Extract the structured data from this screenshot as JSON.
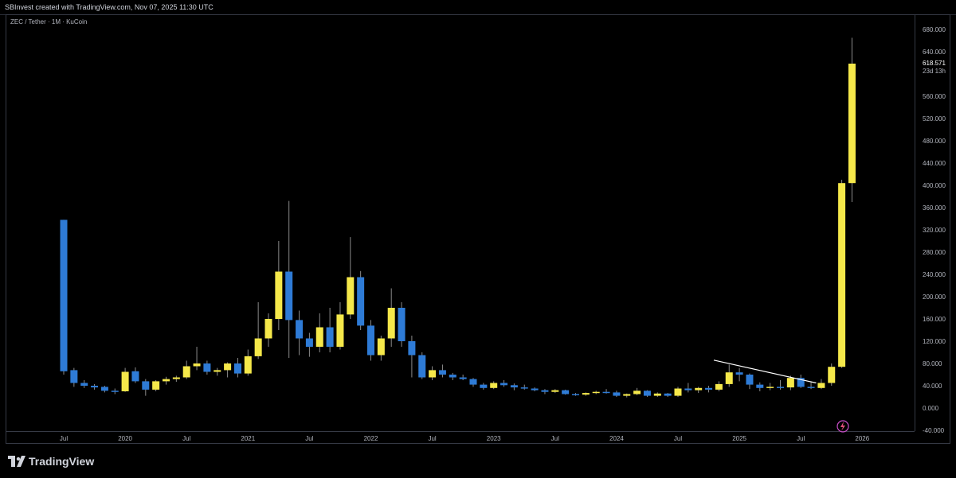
{
  "header": {
    "text": "SBInvest created with TradingView.com, Nov 07, 2025 11:30 UTC"
  },
  "chart": {
    "symbol_label": "ZEC / Tether · 1M · KuCoin"
  },
  "footer": {
    "logo_text": "TradingView"
  },
  "colors": {
    "up": "#f5e84a",
    "down": "#2e7bd6",
    "wick": "#8a8a8a",
    "trendline": "#ffffff"
  },
  "chart_data": {
    "type": "candlestick",
    "title": "ZEC / Tether · 1M · KuCoin",
    "timeframe": "1M",
    "ylim": [
      -40,
      700
    ],
    "y_ticks": [
      -40,
      0,
      40,
      80,
      120,
      160,
      200,
      240,
      280,
      320,
      360,
      400,
      440,
      480,
      520,
      560,
      600,
      640,
      680
    ],
    "y_tick_labels": [
      "-40.000",
      "0.000",
      "40.000",
      "80.000",
      "120.000",
      "160.000",
      "200.000",
      "240.000",
      "280.000",
      "320.000",
      "360.000",
      "400.000",
      "440.000",
      "480.000",
      "520.000",
      "560.000",
      "600.000",
      "640.000",
      "680.000"
    ],
    "x_ticks": [
      {
        "label": "Jul",
        "index": 0
      },
      {
        "label": "2020",
        "index": 6
      },
      {
        "label": "Jul",
        "index": 12
      },
      {
        "label": "2021",
        "index": 18
      },
      {
        "label": "Jul",
        "index": 24
      },
      {
        "label": "2022",
        "index": 30
      },
      {
        "label": "Jul",
        "index": 36
      },
      {
        "label": "2023",
        "index": 42
      },
      {
        "label": "Jul",
        "index": 48
      },
      {
        "label": "2024",
        "index": 54
      },
      {
        "label": "Jul",
        "index": 60
      },
      {
        "label": "2025",
        "index": 66
      },
      {
        "label": "Jul",
        "index": 72
      },
      {
        "label": "2026",
        "index": 78
      }
    ],
    "last_price_label": "618.571",
    "countdown_label": "23d 13h",
    "candles": [
      {
        "date": "2019-07",
        "o": 338,
        "h": 338,
        "l": 60,
        "c": 66
      },
      {
        "date": "2019-08",
        "o": 68,
        "h": 72,
        "l": 38,
        "c": 45
      },
      {
        "date": "2019-09",
        "o": 45,
        "h": 50,
        "l": 36,
        "c": 40
      },
      {
        "date": "2019-10",
        "o": 40,
        "h": 43,
        "l": 33,
        "c": 37
      },
      {
        "date": "2019-11",
        "o": 38,
        "h": 40,
        "l": 28,
        "c": 31
      },
      {
        "date": "2019-12",
        "o": 31,
        "h": 35,
        "l": 25,
        "c": 30
      },
      {
        "date": "2020-01",
        "o": 30,
        "h": 72,
        "l": 29,
        "c": 65
      },
      {
        "date": "2020-02",
        "o": 66,
        "h": 73,
        "l": 45,
        "c": 48
      },
      {
        "date": "2020-03",
        "o": 48,
        "h": 52,
        "l": 22,
        "c": 33
      },
      {
        "date": "2020-04",
        "o": 33,
        "h": 50,
        "l": 30,
        "c": 48
      },
      {
        "date": "2020-05",
        "o": 48,
        "h": 56,
        "l": 42,
        "c": 52
      },
      {
        "date": "2020-06",
        "o": 52,
        "h": 58,
        "l": 47,
        "c": 55
      },
      {
        "date": "2020-07",
        "o": 55,
        "h": 85,
        "l": 52,
        "c": 75
      },
      {
        "date": "2020-08",
        "o": 75,
        "h": 110,
        "l": 68,
        "c": 80
      },
      {
        "date": "2020-09",
        "o": 80,
        "h": 85,
        "l": 60,
        "c": 65
      },
      {
        "date": "2020-10",
        "o": 65,
        "h": 72,
        "l": 58,
        "c": 68
      },
      {
        "date": "2020-11",
        "o": 68,
        "h": 82,
        "l": 55,
        "c": 80
      },
      {
        "date": "2020-12",
        "o": 80,
        "h": 90,
        "l": 55,
        "c": 62
      },
      {
        "date": "2021-01",
        "o": 62,
        "h": 105,
        "l": 58,
        "c": 93
      },
      {
        "date": "2021-02",
        "o": 93,
        "h": 190,
        "l": 88,
        "c": 125
      },
      {
        "date": "2021-03",
        "o": 125,
        "h": 170,
        "l": 110,
        "c": 160
      },
      {
        "date": "2021-04",
        "o": 160,
        "h": 300,
        "l": 140,
        "c": 245
      },
      {
        "date": "2021-05",
        "o": 245,
        "h": 372,
        "l": 90,
        "c": 158
      },
      {
        "date": "2021-06",
        "o": 158,
        "h": 175,
        "l": 95,
        "c": 125
      },
      {
        "date": "2021-07",
        "o": 125,
        "h": 135,
        "l": 92,
        "c": 110
      },
      {
        "date": "2021-08",
        "o": 110,
        "h": 170,
        "l": 100,
        "c": 145
      },
      {
        "date": "2021-09",
        "o": 145,
        "h": 180,
        "l": 100,
        "c": 110
      },
      {
        "date": "2021-10",
        "o": 110,
        "h": 190,
        "l": 105,
        "c": 168
      },
      {
        "date": "2021-11",
        "o": 168,
        "h": 307,
        "l": 160,
        "c": 235
      },
      {
        "date": "2021-12",
        "o": 235,
        "h": 246,
        "l": 140,
        "c": 148
      },
      {
        "date": "2022-01",
        "o": 148,
        "h": 158,
        "l": 85,
        "c": 95
      },
      {
        "date": "2022-02",
        "o": 95,
        "h": 130,
        "l": 85,
        "c": 125
      },
      {
        "date": "2022-03",
        "o": 125,
        "h": 215,
        "l": 110,
        "c": 180
      },
      {
        "date": "2022-04",
        "o": 180,
        "h": 190,
        "l": 110,
        "c": 120
      },
      {
        "date": "2022-05",
        "o": 120,
        "h": 130,
        "l": 55,
        "c": 95
      },
      {
        "date": "2022-06",
        "o": 95,
        "h": 100,
        "l": 52,
        "c": 55
      },
      {
        "date": "2022-07",
        "o": 55,
        "h": 75,
        "l": 50,
        "c": 68
      },
      {
        "date": "2022-08",
        "o": 68,
        "h": 78,
        "l": 55,
        "c": 60
      },
      {
        "date": "2022-09",
        "o": 60,
        "h": 63,
        "l": 50,
        "c": 55
      },
      {
        "date": "2022-10",
        "o": 55,
        "h": 60,
        "l": 50,
        "c": 52
      },
      {
        "date": "2022-11",
        "o": 52,
        "h": 54,
        "l": 38,
        "c": 42
      },
      {
        "date": "2022-12",
        "o": 42,
        "h": 45,
        "l": 33,
        "c": 36
      },
      {
        "date": "2023-01",
        "o": 36,
        "h": 48,
        "l": 34,
        "c": 45
      },
      {
        "date": "2023-02",
        "o": 45,
        "h": 50,
        "l": 38,
        "c": 41
      },
      {
        "date": "2023-03",
        "o": 41,
        "h": 44,
        "l": 32,
        "c": 37
      },
      {
        "date": "2023-04",
        "o": 37,
        "h": 42,
        "l": 33,
        "c": 35
      },
      {
        "date": "2023-05",
        "o": 35,
        "h": 37,
        "l": 30,
        "c": 32
      },
      {
        "date": "2023-06",
        "o": 32,
        "h": 34,
        "l": 25,
        "c": 29
      },
      {
        "date": "2023-07",
        "o": 29,
        "h": 34,
        "l": 27,
        "c": 32
      },
      {
        "date": "2023-08",
        "o": 32,
        "h": 33,
        "l": 24,
        "c": 25
      },
      {
        "date": "2023-09",
        "o": 25,
        "h": 27,
        "l": 22,
        "c": 24
      },
      {
        "date": "2023-10",
        "o": 24,
        "h": 28,
        "l": 22,
        "c": 27
      },
      {
        "date": "2023-11",
        "o": 27,
        "h": 31,
        "l": 25,
        "c": 29
      },
      {
        "date": "2023-12",
        "o": 29,
        "h": 34,
        "l": 26,
        "c": 28
      },
      {
        "date": "2024-01",
        "o": 28,
        "h": 31,
        "l": 20,
        "c": 22
      },
      {
        "date": "2024-02",
        "o": 22,
        "h": 26,
        "l": 19,
        "c": 25
      },
      {
        "date": "2024-03",
        "o": 25,
        "h": 36,
        "l": 23,
        "c": 31
      },
      {
        "date": "2024-04",
        "o": 31,
        "h": 32,
        "l": 20,
        "c": 22
      },
      {
        "date": "2024-05",
        "o": 22,
        "h": 28,
        "l": 20,
        "c": 26
      },
      {
        "date": "2024-06",
        "o": 26,
        "h": 27,
        "l": 20,
        "c": 22
      },
      {
        "date": "2024-07",
        "o": 22,
        "h": 38,
        "l": 20,
        "c": 35
      },
      {
        "date": "2024-08",
        "o": 35,
        "h": 45,
        "l": 28,
        "c": 32
      },
      {
        "date": "2024-09",
        "o": 32,
        "h": 38,
        "l": 27,
        "c": 36
      },
      {
        "date": "2024-10",
        "o": 36,
        "h": 40,
        "l": 28,
        "c": 33
      },
      {
        "date": "2024-11",
        "o": 33,
        "h": 48,
        "l": 30,
        "c": 43
      },
      {
        "date": "2024-12",
        "o": 43,
        "h": 78,
        "l": 38,
        "c": 64
      },
      {
        "date": "2025-01",
        "o": 64,
        "h": 72,
        "l": 48,
        "c": 60
      },
      {
        "date": "2025-02",
        "o": 60,
        "h": 62,
        "l": 34,
        "c": 42
      },
      {
        "date": "2025-03",
        "o": 42,
        "h": 46,
        "l": 30,
        "c": 36
      },
      {
        "date": "2025-04",
        "o": 36,
        "h": 45,
        "l": 32,
        "c": 38
      },
      {
        "date": "2025-05",
        "o": 38,
        "h": 50,
        "l": 33,
        "c": 37
      },
      {
        "date": "2025-06",
        "o": 37,
        "h": 58,
        "l": 32,
        "c": 54
      },
      {
        "date": "2025-07",
        "o": 54,
        "h": 60,
        "l": 36,
        "c": 38
      },
      {
        "date": "2025-08",
        "o": 38,
        "h": 48,
        "l": 34,
        "c": 36
      },
      {
        "date": "2025-09",
        "o": 36,
        "h": 52,
        "l": 34,
        "c": 45
      },
      {
        "date": "2025-10",
        "o": 45,
        "h": 80,
        "l": 40,
        "c": 74
      },
      {
        "date": "2025-11",
        "o": 74,
        "h": 410,
        "l": 72,
        "c": 404
      },
      {
        "date": "2025-12",
        "o": 404,
        "h": 665,
        "l": 370,
        "c": 618.571
      }
    ]
  }
}
